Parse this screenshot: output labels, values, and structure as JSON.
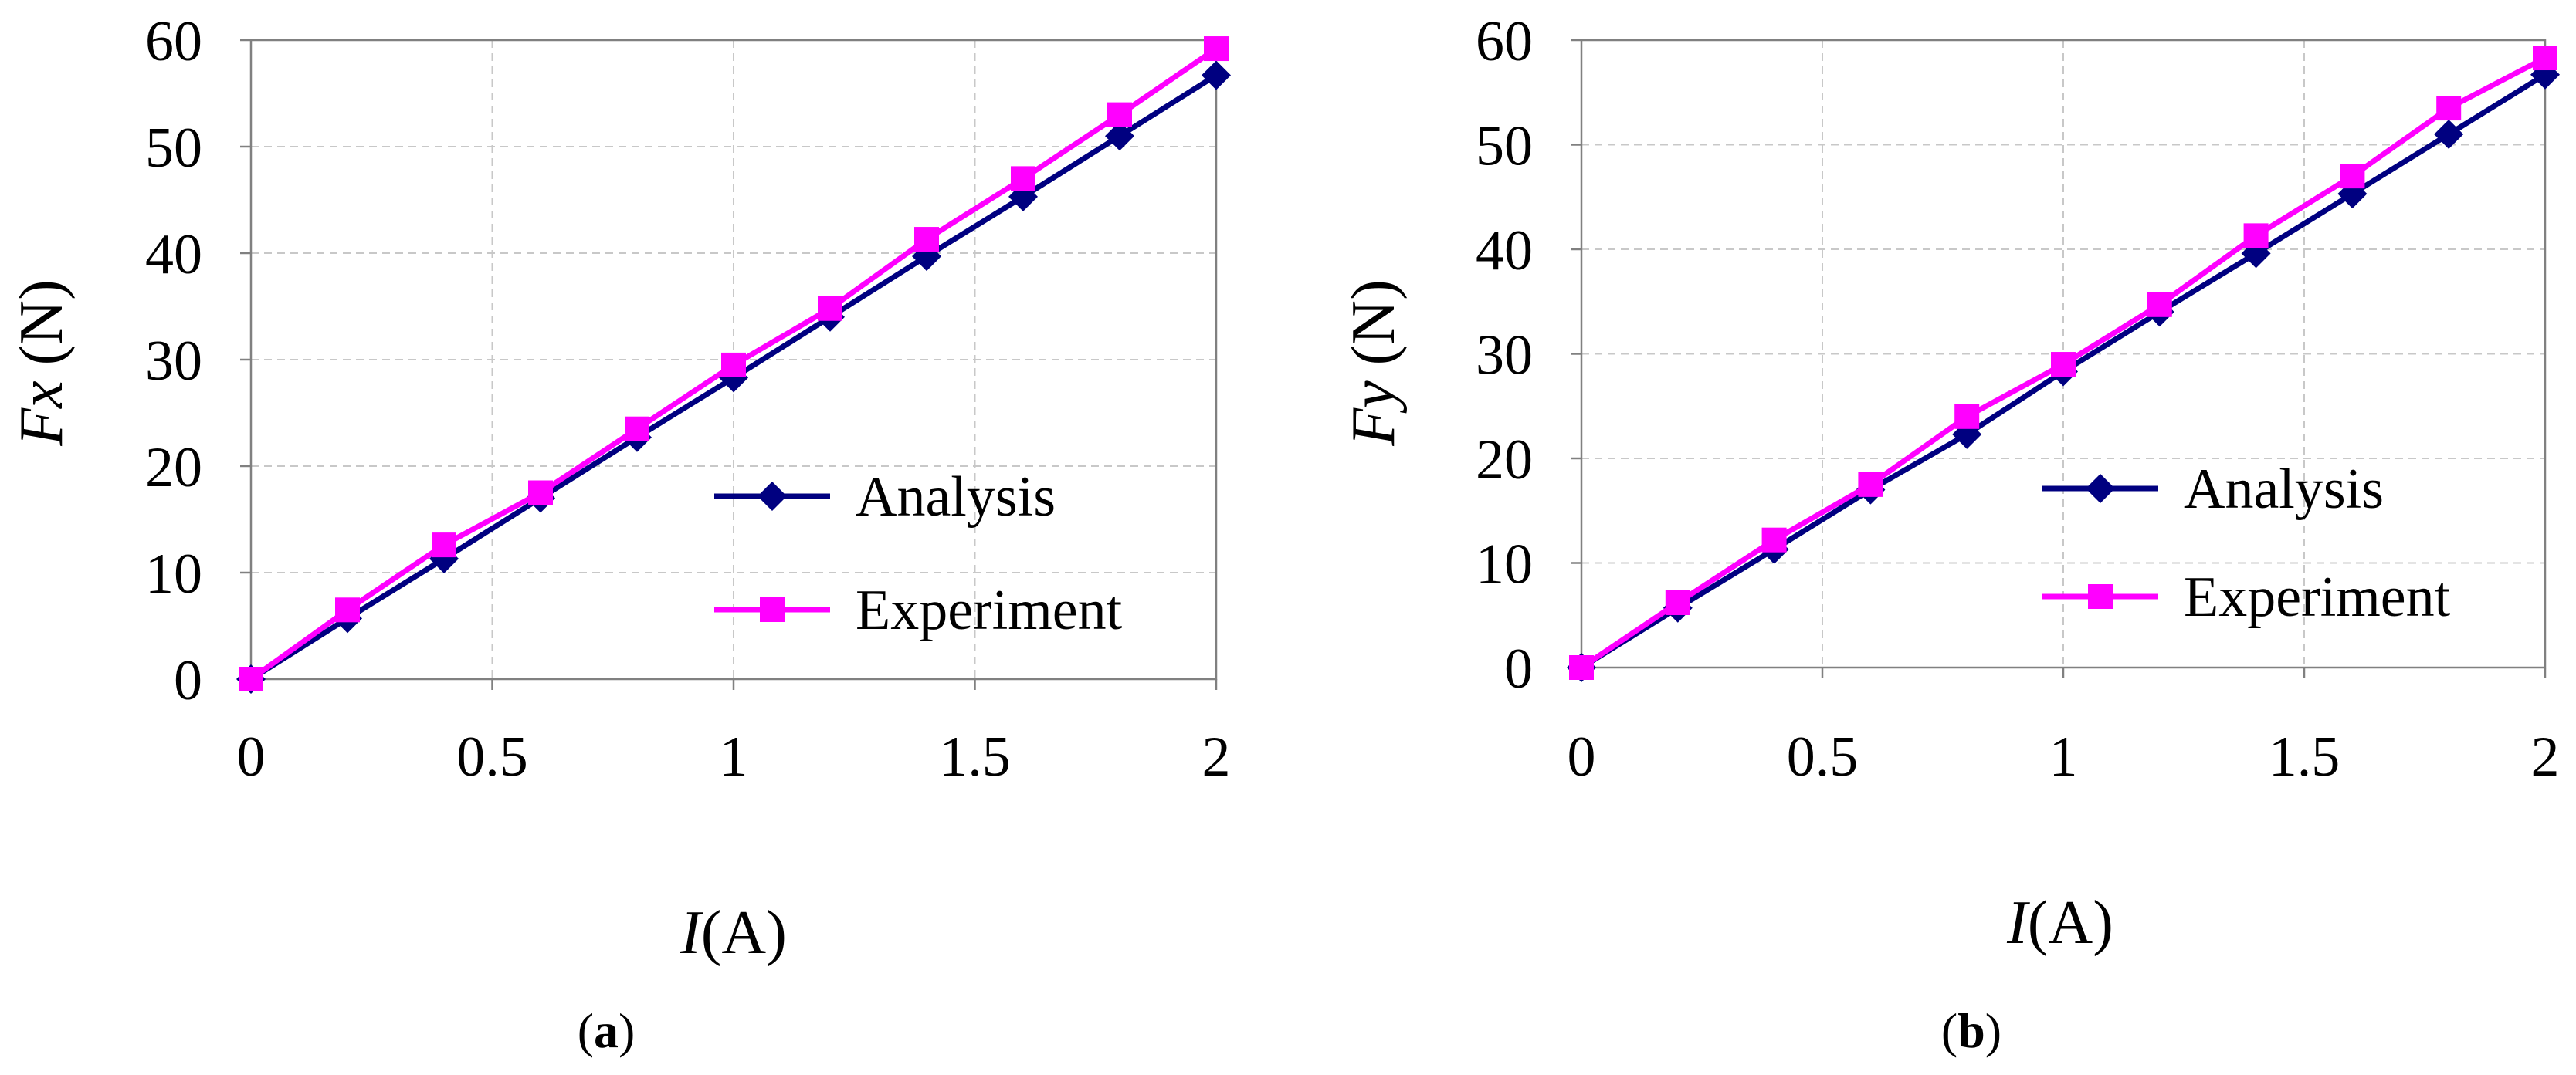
{
  "chart_data": [
    {
      "type": "line",
      "caption_open": "(",
      "caption_letter": "a",
      "caption_close": ")",
      "ylabel_var": "Fx",
      "ylabel_unit": " (N)",
      "xlabel_var": "I",
      "xlabel_unit": "(A)",
      "xlim": [
        0,
        2
      ],
      "ylim": [
        0,
        60
      ],
      "xticks": [
        "0",
        "0.5",
        "1",
        "1.5",
        "2"
      ],
      "yticks": [
        "0",
        "10",
        "20",
        "30",
        "40",
        "50",
        "60"
      ],
      "grid": true,
      "legend_position": "bottom-right",
      "x": [
        0,
        0.2,
        0.4,
        0.6,
        0.8,
        1.0,
        1.2,
        1.4,
        1.6,
        1.8,
        2.0
      ],
      "series": [
        {
          "name": "Analysis",
          "color": "#000080",
          "marker": "diamond",
          "values": [
            0,
            5.7,
            11.3,
            17.0,
            22.7,
            28.3,
            34.0,
            39.7,
            45.3,
            51.0,
            56.7
          ]
        },
        {
          "name": "Experiment",
          "color": "#FF00FF",
          "marker": "square",
          "values": [
            0,
            6.5,
            12.6,
            17.5,
            23.5,
            29.5,
            34.8,
            41.3,
            47.0,
            53.0,
            59.2
          ]
        }
      ]
    },
    {
      "type": "line",
      "caption_open": "(",
      "caption_letter": "b",
      "caption_close": ")",
      "ylabel_var": "Fy",
      "ylabel_unit": " (N)",
      "xlabel_var": "I",
      "xlabel_unit": "(A)",
      "xlim": [
        0,
        2
      ],
      "ylim": [
        0,
        60
      ],
      "xticks": [
        "0",
        "0.5",
        "1",
        "1.5",
        "2"
      ],
      "yticks": [
        "0",
        "10",
        "20",
        "30",
        "40",
        "50",
        "60"
      ],
      "grid": true,
      "legend_position": "bottom-right",
      "x": [
        0,
        0.2,
        0.4,
        0.6,
        0.8,
        1.0,
        1.2,
        1.4,
        1.6,
        1.8,
        2.0
      ],
      "series": [
        {
          "name": "Analysis",
          "color": "#000080",
          "marker": "diamond",
          "values": [
            0,
            5.7,
            11.3,
            17.0,
            22.3,
            28.3,
            34.0,
            39.6,
            45.3,
            51.0,
            56.7
          ]
        },
        {
          "name": "Experiment",
          "color": "#FF00FF",
          "marker": "square",
          "values": [
            0,
            6.2,
            12.2,
            17.5,
            24.0,
            29.0,
            34.7,
            41.3,
            47.0,
            53.5,
            58.3
          ]
        }
      ]
    }
  ]
}
